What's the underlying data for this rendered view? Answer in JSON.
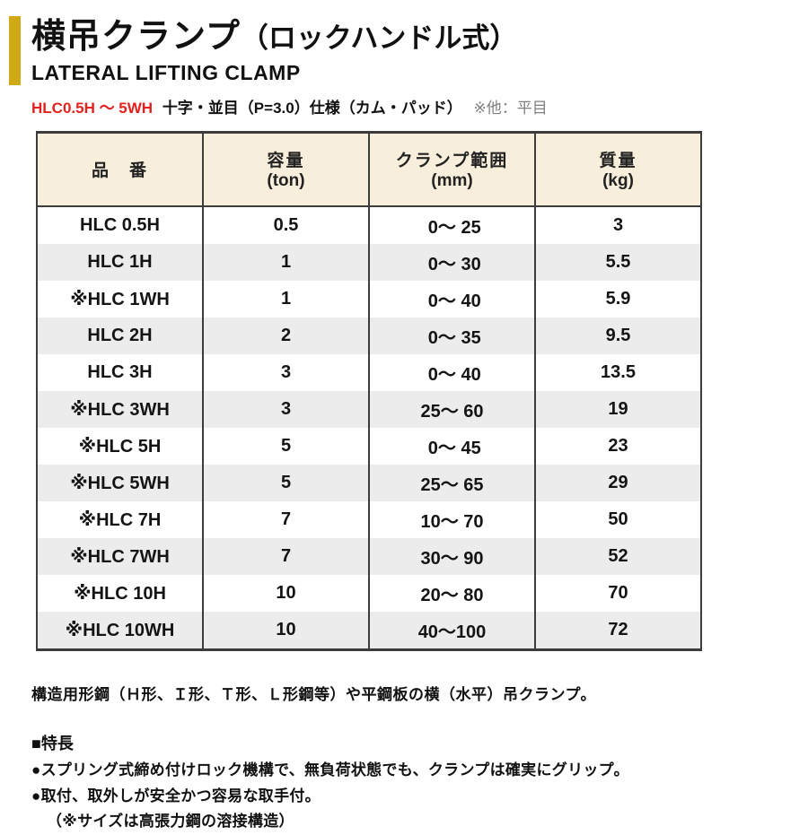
{
  "colors": {
    "accent": "#cfa916",
    "spec_red": "#e5211e",
    "table_header_bg": "#f7eedb",
    "table_stripe_bg": "#ececec",
    "table_border": "#3c3c3c"
  },
  "header": {
    "title": "横吊クランプ",
    "title_suffix": "（ロックハンドル式）",
    "subtitle": "LATERAL LIFTING CLAMP",
    "spec_model": "HLC0.5H ～ 5WH",
    "spec_desc": "十字・並目（P=3.0）仕様（カム・パッド）",
    "spec_note": "※他：平目"
  },
  "table": {
    "columns": [
      {
        "label": "品　番",
        "sub": ""
      },
      {
        "label": "容量",
        "sub": "(ton)"
      },
      {
        "label": "クランプ範囲",
        "sub": "(mm)"
      },
      {
        "label": "質量",
        "sub": "(kg)"
      }
    ],
    "rows": [
      {
        "model": "HLC 0.5H",
        "capacity": "0.5",
        "range": " 0～ 25",
        "weight": "3"
      },
      {
        "model": "HLC 1H",
        "capacity": "1",
        "range": " 0～ 30",
        "weight": "5.5"
      },
      {
        "model": "※HLC 1WH",
        "capacity": "1",
        "range": " 0～ 40",
        "weight": "5.9"
      },
      {
        "model": "HLC 2H",
        "capacity": "2",
        "range": " 0～ 35",
        "weight": "9.5"
      },
      {
        "model": "HLC 3H",
        "capacity": "3",
        "range": " 0～ 40",
        "weight": "13.5"
      },
      {
        "model": "※HLC 3WH",
        "capacity": "3",
        "range": "25～ 60",
        "weight": "19"
      },
      {
        "model": "※HLC 5H",
        "capacity": "5",
        "range": " 0～ 45",
        "weight": "23"
      },
      {
        "model": "※HLC 5WH",
        "capacity": "5",
        "range": "25～ 65",
        "weight": "29"
      },
      {
        "model": "※HLC 7H",
        "capacity": "7",
        "range": "10～ 70",
        "weight": "50"
      },
      {
        "model": "※HLC 7WH",
        "capacity": "7",
        "range": "30～ 90",
        "weight": "52"
      },
      {
        "model": "※HLC 10H",
        "capacity": "10",
        "range": "20～ 80",
        "weight": "70"
      },
      {
        "model": "※HLC 10WH",
        "capacity": "10",
        "range": "40～100",
        "weight": "72"
      }
    ]
  },
  "description": "構造用形鋼（Ｈ形、Ｉ形、Ｔ形、Ｌ形鋼等）や平鋼板の横（水平）吊クランプ。",
  "features": {
    "heading": "■特長",
    "items": [
      "●スプリング式締め付けロック機構で、無負荷状態でも、クランプは確実にグリップ。",
      "●取付、取外しが安全かつ容易な取手付。"
    ],
    "note": "（※サイズは高張力鋼の溶接構造）"
  }
}
